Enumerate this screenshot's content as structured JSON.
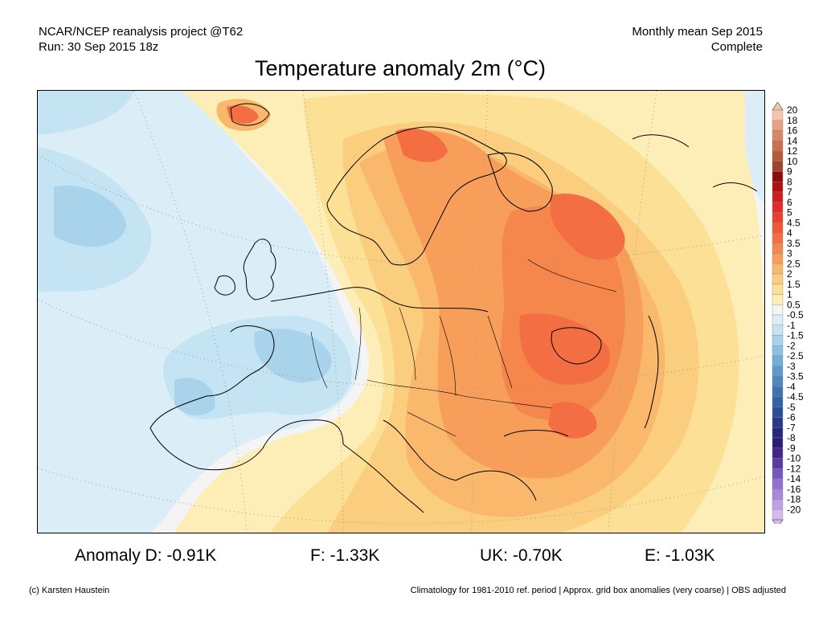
{
  "header": {
    "source": "NCAR/NCEP reanalysis project @T62",
    "run": "Run: 30 Sep 2015 18z",
    "period": "Monthly mean Sep 2015",
    "status": "Complete"
  },
  "title": "Temperature anomaly 2m (°C)",
  "colorbar": {
    "labels": [
      "20",
      "18",
      "16",
      "14",
      "12",
      "10",
      "9",
      "8",
      "7",
      "6",
      "5",
      "4.5",
      "4",
      "3.5",
      "3",
      "2.5",
      "2",
      "1.5",
      "1",
      "0.5",
      "-0.5",
      "-1",
      "-1.5",
      "-2",
      "-2.5",
      "-3",
      "-3.5",
      "-4",
      "-4.5",
      "-5",
      "-6",
      "-7",
      "-8",
      "-9",
      "-10",
      "-12",
      "-14",
      "-16",
      "-18",
      "-20"
    ],
    "colors": [
      "#f6c4ad",
      "#e8a182",
      "#d98863",
      "#c8714c",
      "#b45b3a",
      "#a0442b",
      "#8c0c0c",
      "#b40f0f",
      "#cf1c1c",
      "#df2e2a",
      "#e8422f",
      "#ef5737",
      "#f36e42",
      "#f5864c",
      "#f79f5a",
      "#f9b86b",
      "#fbcd7e",
      "#fce096",
      "#fdeeb8",
      "#f5f5f5",
      "#dbeef8",
      "#c4e3f3",
      "#a8d3ea",
      "#8cc2e0",
      "#72afd4",
      "#5e9ac8",
      "#4d87bd",
      "#3f73b0",
      "#3460a4",
      "#2c4e98",
      "#28398a",
      "#26277c",
      "#2b1b72",
      "#3f2688",
      "#5c3aa6",
      "#7757bf",
      "#9270cf",
      "#a888db",
      "#bda0e6",
      "#d2bcef"
    ],
    "top_arrow_color": "#f6c4ad",
    "bottom_arrow_color": "#d2bcef"
  },
  "anomalies": [
    {
      "text": "Anomaly D: -0.91K"
    },
    {
      "text": "F: -1.33K"
    },
    {
      "text": "UK: -0.70K"
    },
    {
      "text": "E: -1.03K"
    }
  ],
  "footer": {
    "credit": "(c) Karsten Haustein",
    "note": "Climatology for 1981-2010 ref. period | Approx. grid box anomalies (very coarse) | OBS adjusted"
  }
}
